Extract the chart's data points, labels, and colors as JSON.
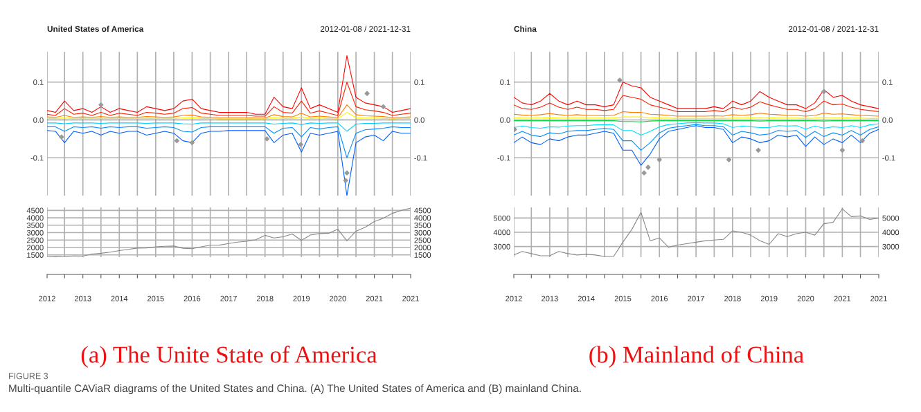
{
  "chart_data": [
    {
      "type": "line",
      "title": "United States of America",
      "subtitle": "2012-01-08 / 2021-12-31",
      "tick_labels": "y",
      "grid": true,
      "x": [
        "2012-01-08",
        "2012-04",
        "2012-07",
        "2012-10",
        "2013-01",
        "2013-04",
        "2013-07",
        "2013-10",
        "2014-01",
        "2014-04",
        "2014-07",
        "2014-10",
        "2015-01",
        "2015-04",
        "2015-07",
        "2015-10",
        "2016-01",
        "2016-04",
        "2016-07",
        "2016-10",
        "2017-01",
        "2017-04",
        "2017-07",
        "2017-10",
        "2018-01",
        "2018-04",
        "2018-07",
        "2018-10",
        "2019-01",
        "2019-04",
        "2019-07",
        "2019-10",
        "2020-01",
        "2020-04",
        "2020-07",
        "2020-10",
        "2021-01",
        "2021-04",
        "2021-07",
        "2021-10",
        "2021-12-31"
      ],
      "xlim": [
        "2012-01-08",
        "2021-12-31"
      ],
      "xticks": [
        {
          "value": "2012-01-08",
          "label": null
        },
        {
          "value": "2012-07",
          "label": null
        },
        {
          "value": "2013",
          "label": null
        },
        {
          "value": "2013-07",
          "label": null
        },
        {
          "value": "2014",
          "label": null
        },
        {
          "value": "2014-07",
          "label": null
        },
        {
          "value": "2015",
          "label": null
        },
        {
          "value": "2015-07",
          "label": null
        },
        {
          "value": "2016",
          "label": null
        },
        {
          "value": "2016-07",
          "label": null
        },
        {
          "value": "2017",
          "label": null
        },
        {
          "value": "2017-07",
          "label": null
        },
        {
          "value": "2018",
          "label": null
        },
        {
          "value": "2018-07",
          "label": null
        },
        {
          "value": "2019",
          "label": null
        },
        {
          "value": "2019-07",
          "label": null
        },
        {
          "value": "2020",
          "label": null
        },
        {
          "value": "2020-07",
          "label": null
        },
        {
          "value": "2021",
          "label": null
        },
        {
          "value": "2021-07",
          "label": null
        },
        {
          "value": "2021-12-31",
          "label": null
        }
      ],
      "ylim": [
        -0.2,
        0.18
      ],
      "yticks": [
        {
          "value": -0.1,
          "label": "-0.1"
        },
        {
          "value": 0,
          "label": "0.0"
        },
        {
          "value": 0.1,
          "label": "0.1"
        }
      ],
      "y2lim": [
        -0.2,
        0.18
      ],
      "y2ticks": [
        {
          "value": -0.1,
          "label": "-0.1"
        },
        {
          "value": 0,
          "label": "0.0"
        },
        {
          "value": 0.1,
          "label": "0.1"
        }
      ],
      "series": [
        {
          "color": "#ff0000",
          "values": [
            0.025,
            0.02,
            0.05,
            0.025,
            0.03,
            0.02,
            0.035,
            0.02,
            0.03,
            0.025,
            0.02,
            0.035,
            0.03,
            0.025,
            0.03,
            0.05,
            0.055,
            0.03,
            0.025,
            0.02,
            0.02,
            0.02,
            0.02,
            0.015,
            0.015,
            0.06,
            0.035,
            0.03,
            0.085,
            0.03,
            0.04,
            0.03,
            0.02,
            0.17,
            0.06,
            0.045,
            0.04,
            0.035,
            0.02,
            0.025,
            0.03
          ]
        },
        {
          "color": "#ff2000",
          "values": [
            0.015,
            0.012,
            0.03,
            0.015,
            0.018,
            0.012,
            0.02,
            0.012,
            0.018,
            0.015,
            0.012,
            0.02,
            0.018,
            0.015,
            0.018,
            0.03,
            0.033,
            0.018,
            0.015,
            0.012,
            0.012,
            0.012,
            0.012,
            0.01,
            0.01,
            0.035,
            0.02,
            0.018,
            0.05,
            0.018,
            0.024,
            0.018,
            0.012,
            0.1,
            0.035,
            0.027,
            0.024,
            0.02,
            0.012,
            0.015,
            0.018
          ]
        },
        {
          "color": "#ff8000",
          "values": [
            0.008,
            0.007,
            0.012,
            0.007,
            0.008,
            0.007,
            0.009,
            0.007,
            0.008,
            0.007,
            0.007,
            0.009,
            0.008,
            0.007,
            0.008,
            0.012,
            0.013,
            0.008,
            0.007,
            0.006,
            0.006,
            0.006,
            0.006,
            0.005,
            0.005,
            0.014,
            0.009,
            0.008,
            0.018,
            0.008,
            0.01,
            0.008,
            0.006,
            0.04,
            0.014,
            0.011,
            0.01,
            0.009,
            0.006,
            0.007,
            0.008
          ]
        },
        {
          "color": "#ffee00",
          "values": [
            0.004,
            0.004,
            0.005,
            0.004,
            0.004,
            0.004,
            0.004,
            0.004,
            0.004,
            0.004,
            0.004,
            0.004,
            0.004,
            0.004,
            0.004,
            0.005,
            0.006,
            0.004,
            0.004,
            0.003,
            0.003,
            0.003,
            0.003,
            0.003,
            0.003,
            0.006,
            0.004,
            0.004,
            0.008,
            0.004,
            0.005,
            0.004,
            0.003,
            0.02,
            0.006,
            0.005,
            0.005,
            0.004,
            0.003,
            0.004,
            0.004
          ]
        },
        {
          "color": "#00e040",
          "values": [
            0.0,
            0.0,
            0.0,
            0.0,
            0.0,
            0.0,
            0.0,
            0.0,
            0.0,
            0.0,
            0.0,
            0.0,
            0.0,
            0.0,
            0.0,
            0.0,
            0.0,
            0.0,
            0.0,
            0.0,
            0.0,
            0.0,
            0.0,
            0.0,
            0.0,
            0.0,
            0.0,
            0.0,
            0.0,
            0.0,
            0.0,
            0.0,
            0.0,
            0.0,
            0.0,
            0.0,
            0.0,
            0.0,
            0.0,
            0.0,
            0.0
          ]
        },
        {
          "color": "#00d0ff",
          "values": [
            -0.008,
            -0.008,
            -0.01,
            -0.008,
            -0.008,
            -0.008,
            -0.009,
            -0.008,
            -0.008,
            -0.008,
            -0.008,
            -0.009,
            -0.008,
            -0.008,
            -0.008,
            -0.01,
            -0.011,
            -0.008,
            -0.008,
            -0.008,
            -0.008,
            -0.008,
            -0.008,
            -0.008,
            -0.008,
            -0.011,
            -0.009,
            -0.008,
            -0.012,
            -0.008,
            -0.009,
            -0.008,
            -0.008,
            -0.03,
            -0.011,
            -0.009,
            -0.009,
            -0.008,
            -0.008,
            -0.008,
            -0.008
          ]
        },
        {
          "color": "#0090ff",
          "values": [
            -0.018,
            -0.018,
            -0.03,
            -0.018,
            -0.02,
            -0.018,
            -0.022,
            -0.018,
            -0.02,
            -0.018,
            -0.018,
            -0.022,
            -0.02,
            -0.018,
            -0.02,
            -0.03,
            -0.032,
            -0.02,
            -0.018,
            -0.018,
            -0.018,
            -0.018,
            -0.018,
            -0.018,
            -0.018,
            -0.035,
            -0.022,
            -0.02,
            -0.045,
            -0.02,
            -0.024,
            -0.02,
            -0.018,
            -0.1,
            -0.035,
            -0.026,
            -0.024,
            -0.022,
            -0.018,
            -0.02,
            -0.02
          ]
        },
        {
          "color": "#0060ff",
          "values": [
            -0.028,
            -0.03,
            -0.06,
            -0.03,
            -0.035,
            -0.03,
            -0.04,
            -0.03,
            -0.035,
            -0.03,
            -0.03,
            -0.04,
            -0.035,
            -0.03,
            -0.035,
            -0.055,
            -0.06,
            -0.035,
            -0.03,
            -0.03,
            -0.028,
            -0.028,
            -0.028,
            -0.028,
            -0.028,
            -0.06,
            -0.04,
            -0.035,
            -0.085,
            -0.035,
            -0.04,
            -0.035,
            -0.03,
            -0.2,
            -0.06,
            -0.045,
            -0.04,
            -0.055,
            -0.03,
            -0.035,
            -0.035
          ]
        },
        {
          "type": "scatter",
          "marker": "diamond",
          "color": "#999999",
          "x": [
            "2012-06",
            "2013-07",
            "2015-08",
            "2016-01",
            "2018-01-20",
            "2018-12-25",
            "2020-03-20",
            "2020-04",
            "2020-10-20",
            "2021-04"
          ],
          "values": [
            -0.045,
            0.04,
            -0.055,
            -0.06,
            -0.05,
            -0.065,
            -0.16,
            -0.14,
            0.07,
            0.035
          ]
        }
      ]
    },
    {
      "type": "line",
      "grid": true,
      "x": [
        "2012-01-08",
        "2012-04",
        "2012-07",
        "2012-10",
        "2013-01",
        "2013-04",
        "2013-07",
        "2013-10",
        "2014-01",
        "2014-04",
        "2014-07",
        "2014-10",
        "2015-01",
        "2015-04",
        "2015-07",
        "2015-10",
        "2016-01",
        "2016-04",
        "2016-07",
        "2016-10",
        "2017-01",
        "2017-04",
        "2017-07",
        "2017-10",
        "2018-01",
        "2018-04",
        "2018-07",
        "2018-10",
        "2019-01",
        "2019-04",
        "2019-07",
        "2019-10",
        "2020-01",
        "2020-04",
        "2020-07",
        "2020-10",
        "2021-01",
        "2021-04",
        "2021-07",
        "2021-10",
        "2021-12-31"
      ],
      "xlim": [
        "2012-01-08",
        "2021-12-31"
      ],
      "xticks": [
        {
          "value": "2012-01-08",
          "label": "2012"
        },
        {
          "value": "2012-07",
          "label": null
        },
        "2013",
        {
          "value": "2013-07",
          "label": null
        },
        "2014",
        {
          "value": "2014-07",
          "label": null
        },
        "2015",
        {
          "value": "2015-07",
          "label": null
        },
        "2016",
        {
          "value": "2016-07",
          "label": null
        },
        "2017",
        {
          "value": "2017-07",
          "label": null
        },
        "2018",
        {
          "value": "2018-07",
          "label": null
        },
        "2019",
        {
          "value": "2019-07",
          "label": null
        },
        "2020",
        {
          "value": "2020-07",
          "label": null
        },
        "2021",
        {
          "value": "2021-07",
          "label": null
        },
        {
          "value": "2021-12-31",
          "label": "2021"
        }
      ],
      "ylim": [
        1350,
        4700
      ],
      "yticks": [
        1500,
        2000,
        2500,
        3000,
        3500,
        4000,
        4500
      ],
      "y2lim": [
        1350,
        4700
      ],
      "y2ticks": [
        1500,
        2000,
        2500,
        3000,
        3500,
        4000,
        4500
      ],
      "series": [
        {
          "color": "#888888",
          "values": [
            1360,
            1400,
            1360,
            1430,
            1420,
            1560,
            1610,
            1690,
            1790,
            1870,
            1960,
            1970,
            2050,
            2080,
            2100,
            1950,
            1920,
            2050,
            2150,
            2160,
            2270,
            2360,
            2420,
            2520,
            2820,
            2640,
            2720,
            2910,
            2480,
            2840,
            2940,
            2960,
            3230,
            2450,
            3100,
            3360,
            3750,
            3970,
            4300,
            4500,
            4650
          ]
        }
      ],
      "annotations": [
        "(a) The Unite State of America"
      ]
    },
    {
      "type": "line",
      "title": "China",
      "subtitle": "2012-01-08 / 2021-12-31",
      "tick_labels": "y",
      "grid": true,
      "x": [
        "2012-01-08",
        "2012-04",
        "2012-07",
        "2012-10",
        "2013-01",
        "2013-04",
        "2013-07",
        "2013-10",
        "2014-01",
        "2014-04",
        "2014-07",
        "2014-10",
        "2015-01",
        "2015-04",
        "2015-07",
        "2015-10",
        "2016-01",
        "2016-04",
        "2016-07",
        "2016-10",
        "2017-01",
        "2017-04",
        "2017-07",
        "2017-10",
        "2018-01",
        "2018-04",
        "2018-07",
        "2018-10",
        "2019-01",
        "2019-04",
        "2019-07",
        "2019-10",
        "2020-01",
        "2020-04",
        "2020-07",
        "2020-10",
        "2021-01",
        "2021-04",
        "2021-07",
        "2021-10",
        "2021-12-31"
      ],
      "xlim": [
        "2012-01-08",
        "2021-12-31"
      ],
      "xticks": [
        {
          "value": "2012-01-08",
          "label": null
        },
        {
          "value": "2012-07",
          "label": null
        },
        {
          "value": "2013",
          "label": null
        },
        {
          "value": "2013-07",
          "label": null
        },
        {
          "value": "2014",
          "label": null
        },
        {
          "value": "2014-07",
          "label": null
        },
        {
          "value": "2015",
          "label": null
        },
        {
          "value": "2015-07",
          "label": null
        },
        {
          "value": "2016",
          "label": null
        },
        {
          "value": "2016-07",
          "label": null
        },
        {
          "value": "2017",
          "label": null
        },
        {
          "value": "2017-07",
          "label": null
        },
        {
          "value": "2018",
          "label": null
        },
        {
          "value": "2018-07",
          "label": null
        },
        {
          "value": "2019",
          "label": null
        },
        {
          "value": "2019-07",
          "label": null
        },
        {
          "value": "2020",
          "label": null
        },
        {
          "value": "2020-07",
          "label": null
        },
        {
          "value": "2021",
          "label": null
        },
        {
          "value": "2021-07",
          "label": null
        },
        {
          "value": "2021-12-31",
          "label": null
        }
      ],
      "ylim": [
        -0.2,
        0.18
      ],
      "yticks": [
        {
          "value": -0.1,
          "label": "-0.1"
        },
        {
          "value": 0,
          "label": "0.0"
        },
        {
          "value": 0.1,
          "label": "0.1"
        }
      ],
      "y2lim": [
        -0.2,
        0.18
      ],
      "y2ticks": [
        {
          "value": -0.1,
          "label": "-0.1"
        },
        {
          "value": 0,
          "label": "0.0"
        },
        {
          "value": 0.1,
          "label": "0.1"
        }
      ],
      "series": [
        {
          "color": "#ff0000",
          "values": [
            0.06,
            0.045,
            0.04,
            0.05,
            0.07,
            0.05,
            0.04,
            0.05,
            0.04,
            0.04,
            0.035,
            0.04,
            0.1,
            0.09,
            0.085,
            0.06,
            0.05,
            0.04,
            0.03,
            0.03,
            0.03,
            0.03,
            0.035,
            0.03,
            0.05,
            0.04,
            0.05,
            0.075,
            0.06,
            0.05,
            0.04,
            0.04,
            0.03,
            0.045,
            0.08,
            0.06,
            0.065,
            0.05,
            0.04,
            0.035,
            0.03
          ]
        },
        {
          "color": "#ff2000",
          "values": [
            0.04,
            0.03,
            0.028,
            0.034,
            0.045,
            0.034,
            0.028,
            0.034,
            0.028,
            0.028,
            0.025,
            0.028,
            0.065,
            0.06,
            0.055,
            0.04,
            0.034,
            0.028,
            0.022,
            0.022,
            0.022,
            0.022,
            0.025,
            0.022,
            0.034,
            0.028,
            0.034,
            0.048,
            0.04,
            0.034,
            0.028,
            0.028,
            0.022,
            0.03,
            0.05,
            0.04,
            0.042,
            0.034,
            0.028,
            0.025,
            0.022
          ]
        },
        {
          "color": "#ff8000",
          "values": [
            0.015,
            0.013,
            0.012,
            0.014,
            0.017,
            0.014,
            0.012,
            0.014,
            0.012,
            0.012,
            0.011,
            0.012,
            0.022,
            0.02,
            0.02,
            0.015,
            0.014,
            0.012,
            0.01,
            0.01,
            0.01,
            0.01,
            0.011,
            0.01,
            0.014,
            0.012,
            0.014,
            0.018,
            0.015,
            0.014,
            0.012,
            0.012,
            0.01,
            0.012,
            0.018,
            0.015,
            0.016,
            0.014,
            0.012,
            0.011,
            0.01
          ]
        },
        {
          "color": "#ffee00",
          "values": [
            0.006,
            0.005,
            0.005,
            0.005,
            0.006,
            0.005,
            0.005,
            0.005,
            0.005,
            0.005,
            0.005,
            0.005,
            0.008,
            0.008,
            0.008,
            0.006,
            0.005,
            0.005,
            0.004,
            0.004,
            0.004,
            0.004,
            0.004,
            0.004,
            0.005,
            0.005,
            0.005,
            0.007,
            0.006,
            0.005,
            0.005,
            0.005,
            0.004,
            0.005,
            0.007,
            0.006,
            0.006,
            0.005,
            0.005,
            0.004,
            0.004
          ]
        },
        {
          "color": "#00e040",
          "values": [
            -0.002,
            -0.002,
            -0.002,
            -0.002,
            -0.002,
            -0.002,
            -0.002,
            -0.002,
            -0.002,
            -0.002,
            -0.002,
            -0.002,
            -0.004,
            -0.004,
            -0.005,
            -0.003,
            -0.002,
            -0.002,
            -0.002,
            -0.002,
            -0.002,
            -0.002,
            -0.002,
            -0.002,
            -0.002,
            -0.002,
            -0.002,
            -0.003,
            -0.002,
            -0.002,
            -0.002,
            -0.002,
            -0.002,
            -0.002,
            -0.003,
            -0.002,
            -0.002,
            -0.002,
            -0.002,
            -0.002,
            -0.002
          ]
        },
        {
          "color": "#00e0ff",
          "values": [
            -0.02,
            -0.016,
            -0.02,
            -0.022,
            -0.018,
            -0.019,
            -0.016,
            -0.015,
            -0.015,
            -0.013,
            -0.012,
            -0.013,
            -0.028,
            -0.028,
            -0.04,
            -0.03,
            -0.018,
            -0.012,
            -0.01,
            -0.008,
            -0.007,
            -0.008,
            -0.008,
            -0.01,
            -0.02,
            -0.016,
            -0.018,
            -0.02,
            -0.02,
            -0.015,
            -0.016,
            -0.015,
            -0.024,
            -0.016,
            -0.022,
            -0.018,
            -0.02,
            -0.015,
            -0.02,
            -0.013,
            -0.01
          ]
        },
        {
          "color": "#0090ff",
          "values": [
            -0.04,
            -0.03,
            -0.04,
            -0.044,
            -0.034,
            -0.037,
            -0.03,
            -0.028,
            -0.028,
            -0.025,
            -0.022,
            -0.025,
            -0.055,
            -0.055,
            -0.08,
            -0.06,
            -0.034,
            -0.022,
            -0.018,
            -0.015,
            -0.012,
            -0.015,
            -0.015,
            -0.018,
            -0.04,
            -0.03,
            -0.034,
            -0.04,
            -0.037,
            -0.028,
            -0.03,
            -0.028,
            -0.046,
            -0.03,
            -0.044,
            -0.034,
            -0.04,
            -0.028,
            -0.04,
            -0.025,
            -0.018
          ]
        },
        {
          "color": "#0060ff",
          "values": [
            -0.06,
            -0.045,
            -0.06,
            -0.065,
            -0.05,
            -0.055,
            -0.045,
            -0.04,
            -0.04,
            -0.035,
            -0.03,
            -0.035,
            -0.08,
            -0.08,
            -0.12,
            -0.09,
            -0.05,
            -0.03,
            -0.025,
            -0.02,
            -0.015,
            -0.02,
            -0.02,
            -0.025,
            -0.06,
            -0.045,
            -0.05,
            -0.06,
            -0.055,
            -0.04,
            -0.045,
            -0.04,
            -0.07,
            -0.045,
            -0.065,
            -0.05,
            -0.06,
            -0.04,
            -0.06,
            -0.035,
            -0.025
          ]
        },
        {
          "type": "scatter",
          "marker": "diamond",
          "color": "#999999",
          "x": [
            "2012-01-15",
            "2014-12",
            "2015-08",
            "2015-09-10",
            "2016-01",
            "2017-11-25",
            "2018-09-15",
            "2020-07",
            "2021-01",
            "2021-07-20"
          ],
          "values": [
            -0.025,
            0.105,
            -0.14,
            -0.125,
            -0.105,
            -0.105,
            -0.08,
            0.075,
            -0.08,
            -0.055
          ]
        }
      ]
    },
    {
      "type": "line",
      "grid": true,
      "x": [
        "2012-01-08",
        "2012-04",
        "2012-07",
        "2012-10",
        "2013-01",
        "2013-04",
        "2013-07",
        "2013-10",
        "2014-01",
        "2014-04",
        "2014-07",
        "2014-10",
        "2015-01",
        "2015-04",
        "2015-07",
        "2015-10",
        "2016-01",
        "2016-04",
        "2016-07",
        "2016-10",
        "2017-01",
        "2017-04",
        "2017-07",
        "2017-10",
        "2018-01",
        "2018-04",
        "2018-07",
        "2018-10",
        "2019-01",
        "2019-04",
        "2019-07",
        "2019-10",
        "2020-01",
        "2020-04",
        "2020-07",
        "2020-10",
        "2021-01",
        "2021-04",
        "2021-07",
        "2021-10",
        "2021-12-31"
      ],
      "xlim": [
        "2012-01-08",
        "2021-12-31"
      ],
      "xticks": [
        {
          "value": "2012-01-08",
          "label": "2012"
        },
        {
          "value": "2012-07",
          "label": null
        },
        "2013",
        {
          "value": "2013-07",
          "label": null
        },
        "2014",
        {
          "value": "2014-07",
          "label": null
        },
        "2015",
        {
          "value": "2015-07",
          "label": null
        },
        "2016",
        {
          "value": "2016-07",
          "label": null
        },
        "2017",
        {
          "value": "2017-07",
          "label": null
        },
        "2018",
        {
          "value": "2018-07",
          "label": null
        },
        "2019",
        {
          "value": "2019-07",
          "label": null
        },
        "2020",
        {
          "value": "2020-07",
          "label": null
        },
        "2021",
        {
          "value": "2021-07",
          "label": null
        },
        {
          "value": "2021-12-31",
          "label": "2021"
        }
      ],
      "ylim": [
        2250,
        5750
      ],
      "yticks": [
        3000,
        4000,
        5000
      ],
      "y2lim": [
        2250,
        5750
      ],
      "y2ticks": [
        3000,
        4000,
        5000
      ],
      "series": [
        {
          "color": "#888888",
          "values": [
            2400,
            2650,
            2500,
            2350,
            2350,
            2650,
            2500,
            2400,
            2450,
            2400,
            2300,
            2300,
            3300,
            4200,
            5400,
            3400,
            3600,
            2950,
            3100,
            3200,
            3300,
            3400,
            3450,
            3500,
            4100,
            4000,
            3800,
            3400,
            3150,
            3900,
            3700,
            3900,
            4000,
            3800,
            4600,
            4700,
            5650,
            5100,
            5150,
            4900,
            5000
          ]
        }
      ],
      "annotations": [
        "(b) Mainland of China",
        "FIGURE 3",
        "Multi-quantile CAViaR diagrams of the United States and China. (A) The United States of America and (B) mainland China."
      ]
    }
  ]
}
